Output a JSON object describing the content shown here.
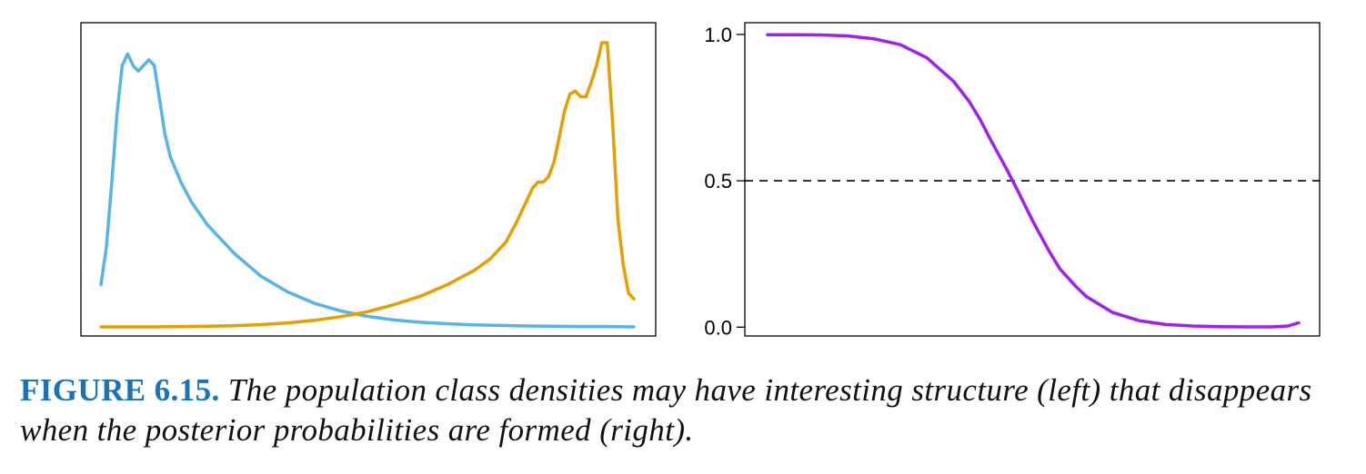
{
  "caption": {
    "label": "FIGURE 6.15.",
    "text": "The population class densities may have interesting structure (left) that disappears when the posterior probabilities are formed (right)."
  },
  "chart_data": [
    {
      "type": "line",
      "title": "",
      "xlabel": "",
      "ylabel": "",
      "xlim": [
        0,
        1
      ],
      "ylim": [
        -0.03,
        1.07
      ],
      "grid": false,
      "legend": "none",
      "series": [
        {
          "color": "#56b4e9",
          "x": [
            0.0,
            0.01,
            0.02,
            0.03,
            0.04,
            0.05,
            0.06,
            0.07,
            0.08,
            0.09,
            0.1,
            0.11,
            0.12,
            0.13,
            0.15,
            0.17,
            0.2,
            0.25,
            0.3,
            0.35,
            0.4,
            0.45,
            0.5,
            0.55,
            0.6,
            0.65,
            0.7,
            0.75,
            0.8,
            0.85,
            0.9,
            0.95,
            1.0
          ],
          "y": [
            0.15,
            0.28,
            0.5,
            0.75,
            0.92,
            0.96,
            0.92,
            0.9,
            0.92,
            0.94,
            0.92,
            0.8,
            0.68,
            0.6,
            0.51,
            0.44,
            0.36,
            0.26,
            0.18,
            0.125,
            0.085,
            0.058,
            0.039,
            0.026,
            0.018,
            0.013,
            0.009,
            0.007,
            0.005,
            0.004,
            0.003,
            0.003,
            0.002
          ]
        },
        {
          "color": "#e69f00",
          "x": [
            0.0,
            0.05,
            0.1,
            0.15,
            0.2,
            0.25,
            0.3,
            0.35,
            0.4,
            0.45,
            0.5,
            0.55,
            0.6,
            0.65,
            0.7,
            0.73,
            0.76,
            0.78,
            0.8,
            0.81,
            0.82,
            0.83,
            0.84,
            0.85,
            0.86,
            0.87,
            0.88,
            0.89,
            0.9,
            0.91,
            0.92,
            0.93,
            0.94,
            0.95,
            0.96,
            0.97,
            0.98,
            0.99,
            1.0
          ],
          "y": [
            0.002,
            0.002,
            0.002,
            0.003,
            0.004,
            0.006,
            0.01,
            0.016,
            0.025,
            0.038,
            0.055,
            0.08,
            0.11,
            0.15,
            0.2,
            0.24,
            0.3,
            0.37,
            0.45,
            0.49,
            0.51,
            0.51,
            0.53,
            0.58,
            0.67,
            0.76,
            0.82,
            0.83,
            0.81,
            0.81,
            0.86,
            0.92,
            1.0,
            1.0,
            0.72,
            0.38,
            0.22,
            0.12,
            0.1
          ]
        }
      ]
    },
    {
      "type": "line",
      "title": "",
      "xlabel": "",
      "ylabel": "",
      "xlim": [
        0,
        1
      ],
      "ylim": [
        -0.03,
        1.04
      ],
      "yticks": [
        "0.0",
        "0.5",
        "1.0"
      ],
      "ytick_values": [
        0.0,
        0.5,
        1.0
      ],
      "grid": false,
      "legend": "none",
      "reference_line": {
        "y": 0.5,
        "style": "dashed",
        "color": "#000000"
      },
      "series": [
        {
          "color": "#a020f0",
          "x": [
            0.0,
            0.05,
            0.1,
            0.15,
            0.2,
            0.25,
            0.3,
            0.35,
            0.38,
            0.4,
            0.42,
            0.45,
            0.47,
            0.5,
            0.53,
            0.55,
            0.58,
            0.6,
            0.65,
            0.7,
            0.75,
            0.8,
            0.85,
            0.9,
            0.95,
            0.98,
            1.0
          ],
          "y": [
            0.999,
            0.999,
            0.998,
            0.995,
            0.985,
            0.965,
            0.92,
            0.84,
            0.77,
            0.71,
            0.64,
            0.54,
            0.47,
            0.36,
            0.26,
            0.2,
            0.14,
            0.105,
            0.05,
            0.022,
            0.009,
            0.004,
            0.002,
            0.001,
            0.001,
            0.004,
            0.015
          ]
        }
      ]
    }
  ]
}
